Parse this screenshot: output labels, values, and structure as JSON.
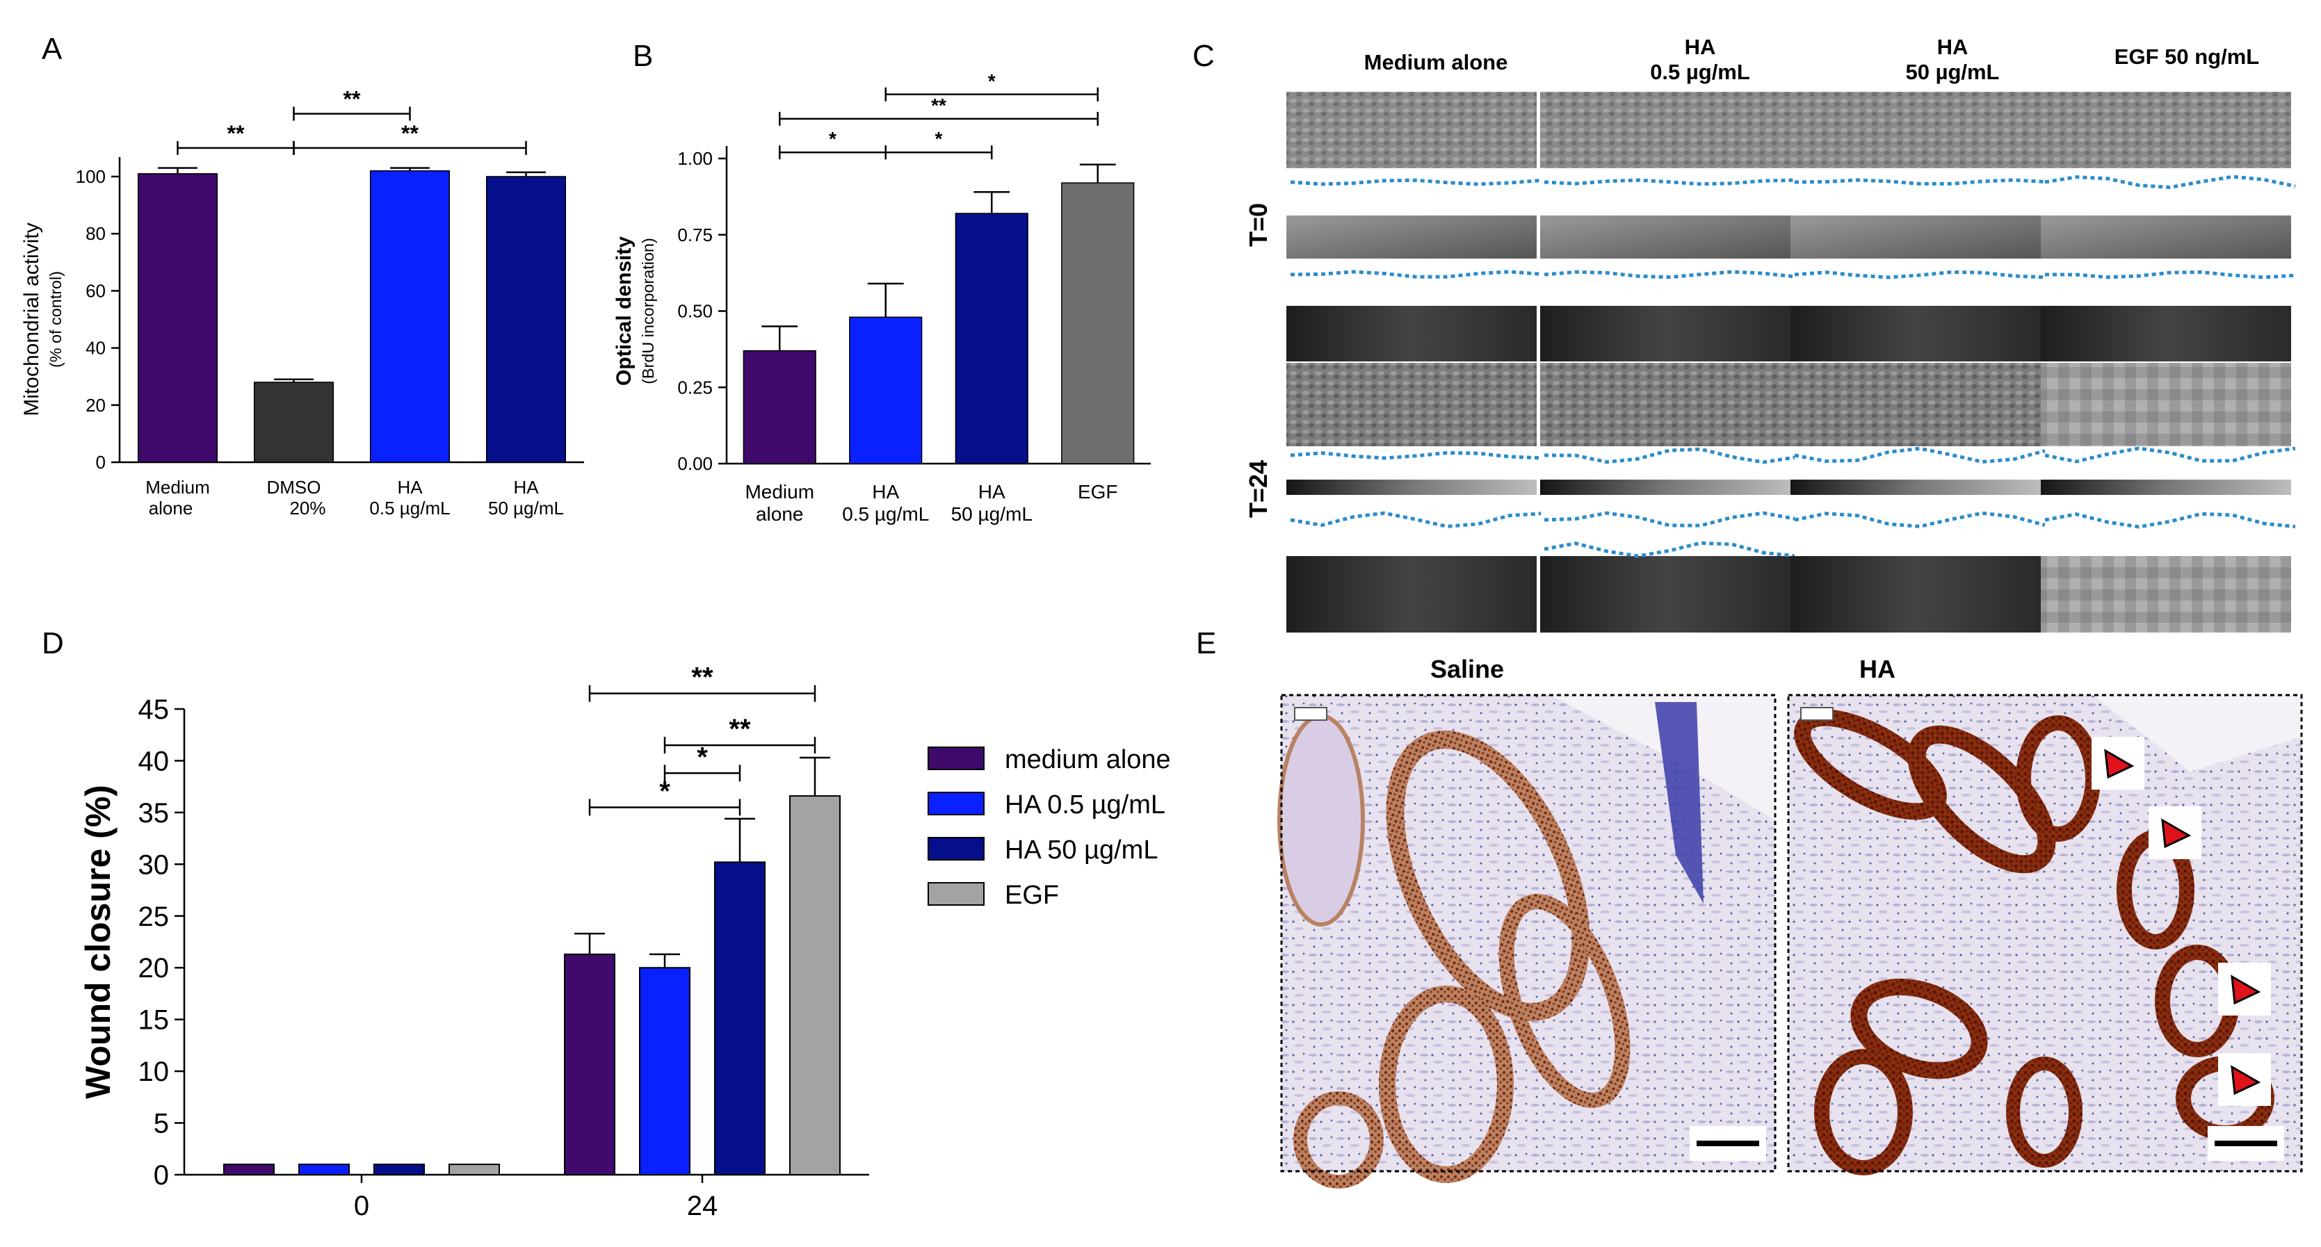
{
  "panel_labels": [
    "A",
    "B",
    "C",
    "D",
    "E"
  ],
  "colors": {
    "medium": "#3f0a6b",
    "dmso": "#333333",
    "ha_low": "#0a21ff",
    "ha_high": "#050f8c",
    "egf_dark": "#6e6e6e",
    "egf_light": "#a3a3a3",
    "wound_line": "#2a8ccc",
    "arrow": "#e0121b"
  },
  "chart_data": [
    {
      "panel": "A",
      "type": "bar",
      "categories": [
        [
          "Medium",
          "alone"
        ],
        [
          "DMSO",
          "20%"
        ],
        [
          "HA",
          "0.5 µg/mL"
        ],
        [
          "HA",
          "50 µg/mL"
        ]
      ],
      "values": [
        101,
        28,
        102,
        100
      ],
      "errors": [
        2,
        1,
        1,
        1.5
      ],
      "colors": [
        "#3f0a6b",
        "#333333",
        "#0a21ff",
        "#050f8c"
      ],
      "ylabel": [
        "Mitochondrial activity",
        "(% of control)"
      ],
      "ylim": [
        0,
        100
      ],
      "yticks": [
        "0",
        "20",
        "40",
        "60",
        "80",
        "100"
      ],
      "significance": [
        {
          "from": 0,
          "to": 1,
          "label": "**",
          "y": 110
        },
        {
          "from": 1,
          "to": 2,
          "label": "**",
          "y": 122
        },
        {
          "from": 1,
          "to": 3,
          "label": "**",
          "y": 110
        }
      ]
    },
    {
      "panel": "B",
      "type": "bar",
      "categories": [
        [
          "Medium",
          "alone"
        ],
        [
          "HA",
          "0.5 µg/mL"
        ],
        [
          "HA",
          "50 µg/mL"
        ],
        [
          "EGF"
        ]
      ],
      "values": [
        0.37,
        0.48,
        0.82,
        0.92
      ],
      "errors": [
        0.08,
        0.11,
        0.07,
        0.06
      ],
      "colors": [
        "#3f0a6b",
        "#0a21ff",
        "#050f8c",
        "#6e6e6e"
      ],
      "ylabel": [
        "Optical density",
        "(BrdU incorporation)"
      ],
      "ylim": [
        0,
        1
      ],
      "yticks": [
        "0.00",
        "0.25",
        "0.50",
        "0.75",
        "1.00"
      ],
      "significance": [
        {
          "from": 0,
          "to": 1,
          "label": "*",
          "y": 1.02
        },
        {
          "from": 1,
          "to": 2,
          "label": "*",
          "y": 1.02
        },
        {
          "from": 0,
          "to": 3,
          "label": "**",
          "y": 1.13
        },
        {
          "from": 1,
          "to": 3,
          "label": "*",
          "y": 1.21
        }
      ]
    },
    {
      "panel": "D",
      "type": "bar",
      "categories": [
        "0",
        "24"
      ],
      "series": [
        {
          "name": "medium alone",
          "values": [
            1,
            21.3
          ],
          "errors": [
            0,
            2
          ],
          "color": "#3f0a6b"
        },
        {
          "name": "HA 0.5 µg/mL",
          "values": [
            1,
            20
          ],
          "errors": [
            0,
            1.3
          ],
          "color": "#0a21ff"
        },
        {
          "name": "HA 50 µg/mL",
          "values": [
            1,
            30.2
          ],
          "errors": [
            0,
            4.2
          ],
          "color": "#050f8c"
        },
        {
          "name": "EGF",
          "values": [
            1,
            36.6
          ],
          "errors": [
            0,
            3.7
          ],
          "color": "#a3a3a3"
        }
      ],
      "ylabel": "Wound closure (%)",
      "ylim": [
        0,
        45
      ],
      "yticks": [
        "0",
        "5",
        "10",
        "15",
        "20",
        "25",
        "30",
        "35",
        "40",
        "45"
      ],
      "legend_position": "right",
      "significance": [
        {
          "from": 0,
          "to": 2,
          "label": "*",
          "y": 35.5
        },
        {
          "from": 1,
          "to": 2,
          "label": "*",
          "y": 38.8
        },
        {
          "from": 1,
          "to": 3,
          "label": "**",
          "y": 41.5
        },
        {
          "from": 0,
          "to": 3,
          "label": "**",
          "y": 46.5
        }
      ]
    }
  ],
  "panel_c": {
    "columns": [
      [
        "Medium alone"
      ],
      [
        "HA",
        "0.5 µg/mL"
      ],
      [
        "HA",
        "50 µg/mL"
      ],
      [
        "EGF 50 ng/mL"
      ]
    ],
    "rows": [
      "T=0",
      "T=24"
    ]
  },
  "panel_e": {
    "titles": [
      "Saline",
      "HA"
    ],
    "arrow_count": 4
  }
}
